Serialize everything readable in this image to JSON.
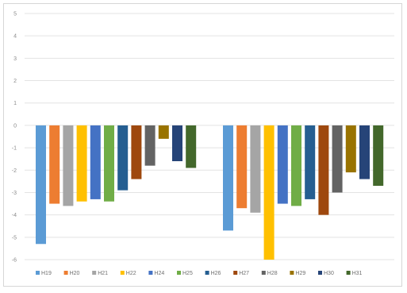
{
  "chart_data": {
    "type": "bar",
    "categories": [
      "",
      ""
    ],
    "ylim": [
      -6,
      5
    ],
    "yticks": [
      5,
      4,
      3,
      2,
      1,
      0,
      -1,
      -2,
      -3,
      -4,
      -5,
      -6
    ],
    "ytick_labels": [
      "5",
      "4",
      "3",
      "2",
      "1",
      "0",
      "-1",
      "-2",
      "-3",
      "-4",
      "-5",
      "-6"
    ],
    "grid": true,
    "legend_position": "bottom",
    "series": [
      {
        "name": "H19",
        "color": "#5b9bd5",
        "values": [
          -5.3,
          -4.7
        ]
      },
      {
        "name": "H20",
        "color": "#ed7d31",
        "values": [
          -3.5,
          -3.7
        ]
      },
      {
        "name": "H21",
        "color": "#a5a5a5",
        "values": [
          -3.6,
          -3.9
        ]
      },
      {
        "name": "H22",
        "color": "#ffc000",
        "values": [
          -3.4,
          -6.0
        ]
      },
      {
        "name": "H24",
        "color": "#4472c4",
        "values": [
          -3.3,
          -3.5
        ]
      },
      {
        "name": "H25",
        "color": "#70ad47",
        "values": [
          -3.4,
          -3.6
        ]
      },
      {
        "name": "H26",
        "color": "#255e91",
        "values": [
          -2.9,
          -3.3
        ]
      },
      {
        "name": "H27",
        "color": "#9e480e",
        "values": [
          -2.4,
          -4.0
        ]
      },
      {
        "name": "H28",
        "color": "#636363",
        "values": [
          -1.8,
          -3.0
        ]
      },
      {
        "name": "H29",
        "color": "#997300",
        "values": [
          -0.6,
          -2.1
        ]
      },
      {
        "name": "H30",
        "color": "#264478",
        "values": [
          -1.6,
          -2.4
        ]
      },
      {
        "name": "H31",
        "color": "#43682b",
        "values": [
          -1.9,
          -2.7
        ]
      }
    ]
  }
}
